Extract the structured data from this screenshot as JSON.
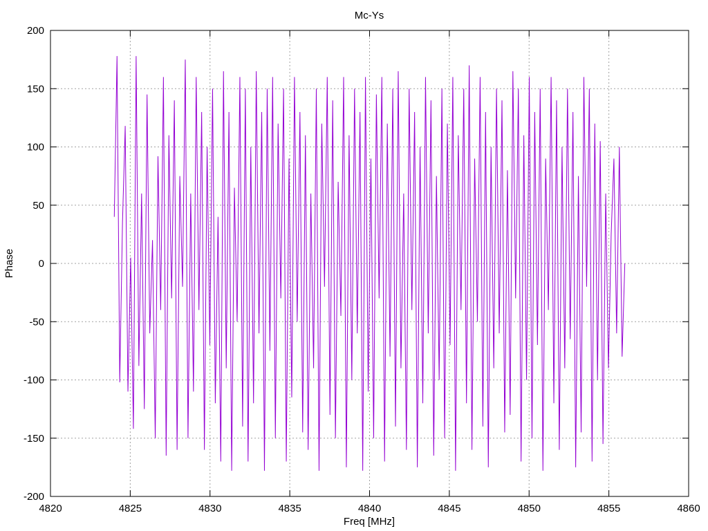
{
  "chart_data": {
    "type": "line",
    "title": "Mc-Ys",
    "xlabel": "Freq [MHz]",
    "ylabel": "Phase",
    "xlim": [
      4820,
      4860
    ],
    "ylim": [
      -200,
      200
    ],
    "xticks": [
      4820,
      4825,
      4830,
      4835,
      4840,
      4845,
      4850,
      4855,
      4860
    ],
    "yticks": [
      -200,
      -150,
      -100,
      -50,
      0,
      50,
      100,
      150,
      200
    ],
    "grid": true,
    "legend": "none",
    "series": [
      {
        "color": "#9400d3",
        "x_start": 4824.0,
        "x_end": 4856.0,
        "values": [
          40,
          178,
          -102,
          35,
          118,
          -110,
          5,
          -142,
          178,
          -88,
          60,
          -125,
          145,
          -60,
          20,
          -150,
          92,
          -40,
          160,
          -165,
          110,
          -30,
          140,
          -160,
          75,
          -20,
          175,
          -150,
          60,
          -110,
          160,
          -40,
          130,
          -160,
          100,
          -70,
          150,
          -120,
          40,
          -170,
          165,
          -90,
          130,
          -178,
          65,
          -50,
          160,
          -140,
          150,
          -170,
          100,
          -120,
          165,
          -60,
          130,
          -178,
          150,
          -75,
          160,
          -150,
          120,
          -30,
          150,
          -170,
          90,
          -115,
          160,
          -50,
          130,
          -145,
          110,
          -160,
          60,
          -90,
          150,
          -178,
          120,
          -20,
          160,
          -130,
          140,
          -150,
          70,
          -45,
          160,
          -175,
          110,
          -100,
          150,
          -60,
          130,
          -178,
          160,
          -110,
          90,
          -150,
          145,
          -30,
          160,
          -170,
          120,
          -80,
          150,
          -140,
          165,
          -90,
          60,
          -160,
          150,
          -40,
          130,
          -175,
          100,
          -120,
          160,
          -60,
          140,
          -165,
          75,
          -100,
          150,
          -150,
          120,
          -70,
          160,
          -178,
          110,
          -40,
          150,
          -120,
          170,
          -160,
          90,
          -50,
          160,
          -140,
          130,
          -175,
          100,
          -90,
          150,
          -60,
          140,
          -145,
          80,
          -130,
          165,
          -30,
          150,
          -170,
          110,
          -100,
          160,
          -150,
          130,
          -70,
          150,
          -178,
          90,
          -40,
          160,
          -120,
          140,
          -160,
          100,
          -90,
          150,
          -65,
          130,
          -175,
          75,
          -145,
          160,
          -20,
          150,
          -170,
          120,
          -100,
          105,
          -155,
          60,
          -90,
          25,
          90,
          -60,
          100,
          -80,
          0
        ]
      }
    ]
  }
}
